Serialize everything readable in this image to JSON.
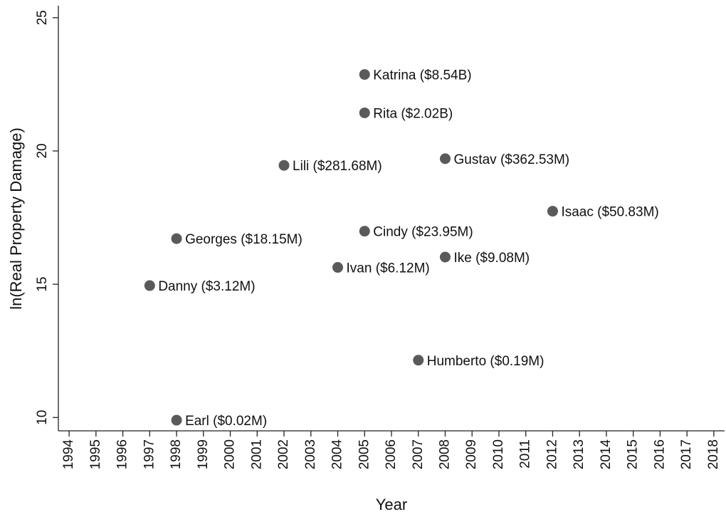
{
  "chart_data": {
    "type": "scatter",
    "x_label": "Year",
    "y_label": "ln(Real Property Damage)",
    "color": "#5a5a5a",
    "x": [
      2005,
      2005,
      2002,
      2008,
      2012,
      1998,
      2005,
      2008,
      2004,
      1997,
      2007,
      1998
    ],
    "values": [
      22.87,
      21.43,
      19.46,
      19.71,
      17.74,
      16.71,
      16.99,
      16.02,
      15.63,
      14.95,
      12.15,
      9.9
    ],
    "labels": [
      "Katrina ($8.54B)",
      "Rita ($2.02B)",
      "Lili ($281.68M)",
      "Gustav ($362.53M)",
      "Isaac ($50.83M)",
      "Georges ($18.15M)",
      "Cindy ($23.95M)",
      "Ike ($9.08M)",
      "Ivan ($6.12M)",
      "Danny ($3.12M)",
      "Humberto ($0.19M)",
      "Earl ($0.02M)"
    ],
    "xlim": [
      1993.6,
      2018.4
    ],
    "ylim": [
      9.5,
      25.45
    ],
    "xticks": [
      1994,
      1995,
      1996,
      1997,
      1998,
      1999,
      2000,
      2001,
      2002,
      2003,
      2004,
      2005,
      2006,
      2007,
      2008,
      2009,
      2010,
      2011,
      2012,
      2013,
      2014,
      2015,
      2016,
      2017,
      2018
    ],
    "yticks": [
      10,
      15,
      20,
      25
    ]
  }
}
